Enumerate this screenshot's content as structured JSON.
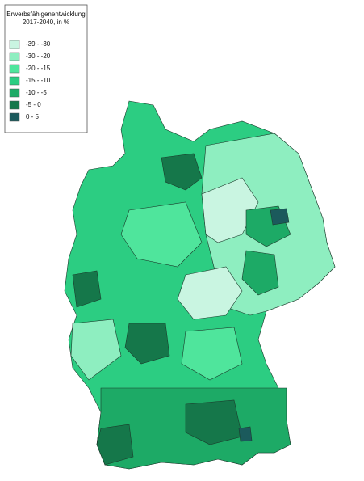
{
  "legend": {
    "title": [
      "Erwerbsfähigenentwicklung",
      "2017-2040, in %"
    ],
    "items": [
      {
        "label": "-39 - -30",
        "color": "#c9f5e1"
      },
      {
        "label": "-30 - -20",
        "color": "#8eeec0"
      },
      {
        "label": "-20 - -15",
        "color": "#4fe59c"
      },
      {
        "label": "-15 - -10",
        "color": "#2ccd82"
      },
      {
        "label": "-10 - -5",
        "color": "#1daa66"
      },
      {
        "label": "-5 - 0",
        "color": "#15774a"
      },
      {
        "label": "0 - 5",
        "color": "#1b5a5c"
      }
    ]
  }
}
